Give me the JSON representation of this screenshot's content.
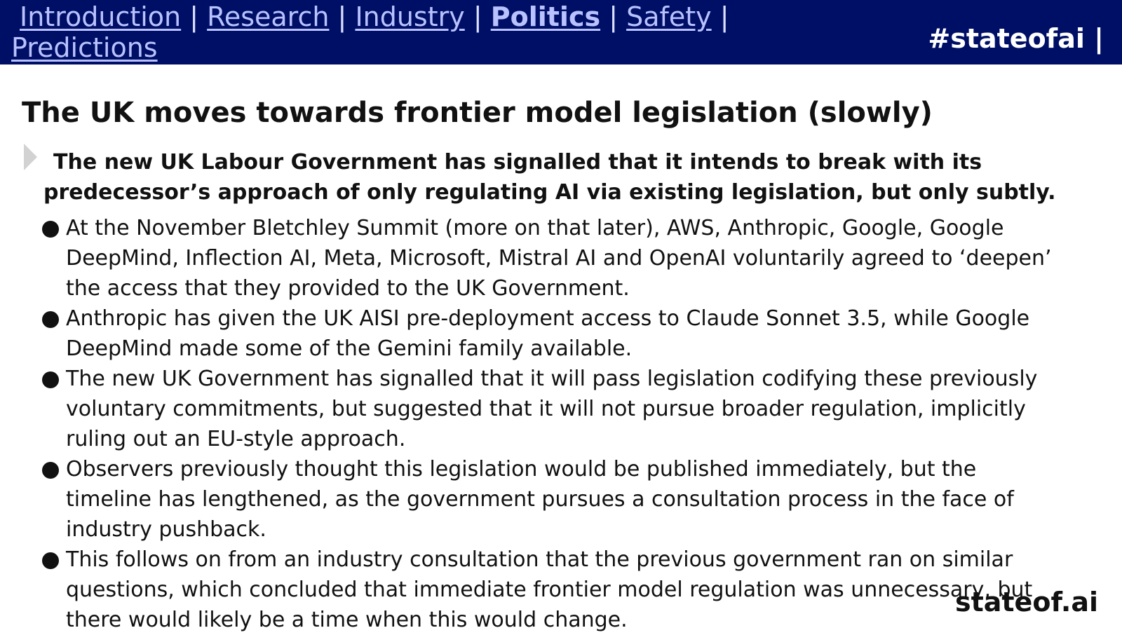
{
  "nav": {
    "items": [
      "Introduction",
      "Research",
      "Industry",
      "Politics",
      "Safety",
      "Predictions"
    ],
    "separators": [
      "|",
      "|",
      "|",
      "|",
      "|"
    ],
    "active_index": 3,
    "hashtag": "#stateofai |"
  },
  "slide": {
    "title": "The UK moves towards frontier model legislation (slowly)",
    "callout": "The new UK Labour Government has signalled that it intends to break with its predecessor’s approach of only regulating AI via existing legislation, but only subtly.",
    "bullets": [
      {
        "lines": [
          "At the November Bletchley Summit (more on that later), AWS, Anthropic, Google, Google",
          "DeepMind, Inflection AI, Meta, Microsoft, Mistral AI and OpenAI voluntarily agreed to ‘deepen’",
          "the access that they provided to the UK Government."
        ]
      },
      {
        "lines": [
          "Anthropic has given the UK AISI pre-deployment access to Claude Sonnet 3.5, while Google",
          "DeepMind made some of the Gemini family available."
        ]
      },
      {
        "lines": [
          "The new UK Government has signalled that it will pass legislation codifying these previously",
          "voluntary commitments, but suggested that it will not pursue broader regulation, implicitly",
          "ruling out an EU-style approach."
        ]
      },
      {
        "lines": [
          "Observers previously thought this legislation would be published immediately, but the",
          "timeline has lengthened, as the government pursues a consultation process in the face of",
          "industry pushback."
        ]
      },
      {
        "lines": [
          "This follows on from an industry consultation that the previous government ran on similar",
          "questions, which concluded that immediate frontier model regulation was unnecessary, but",
          "there would likely be a time when this would change."
        ]
      }
    ]
  },
  "brand": {
    "name": "stateof.ai"
  }
}
